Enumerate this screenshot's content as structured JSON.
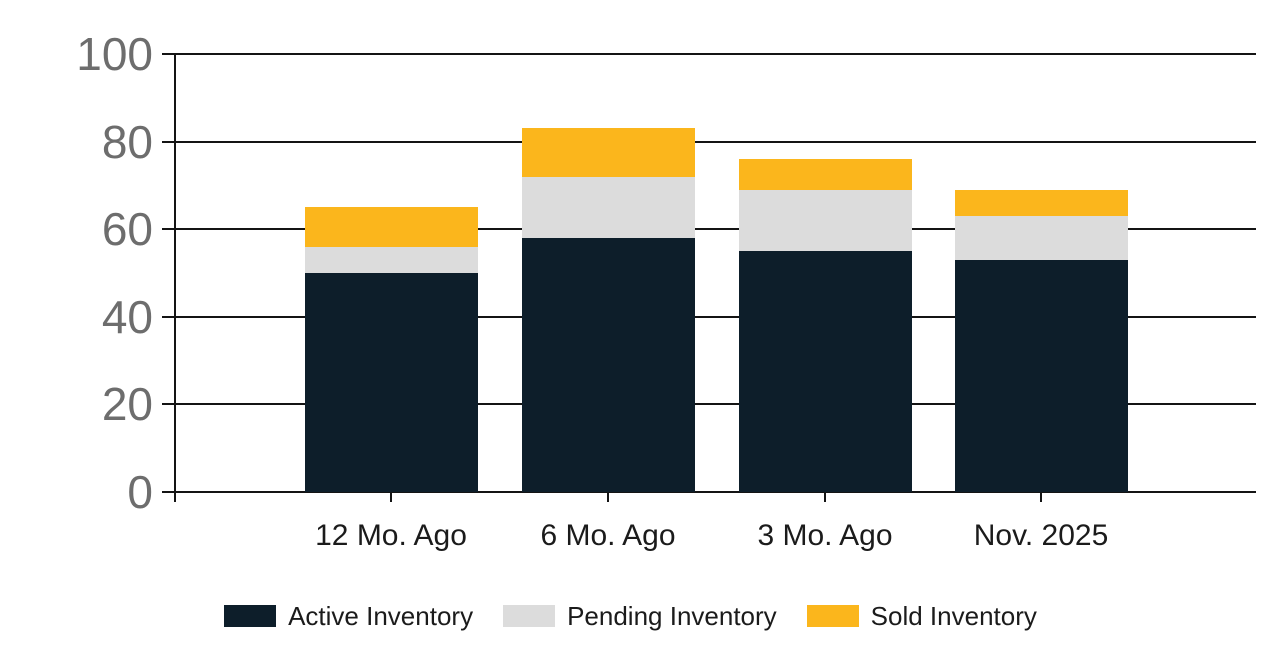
{
  "chart_data": {
    "type": "bar",
    "stacked": true,
    "title": "",
    "xlabel": "",
    "ylabel": "",
    "categories": [
      "12 Mo. Ago",
      "6 Mo. Ago",
      "3 Mo. Ago",
      "Nov. 2025"
    ],
    "series": [
      {
        "name": "Active Inventory",
        "color": "#0d1e2a",
        "values": [
          50,
          58,
          55,
          53
        ]
      },
      {
        "name": "Pending Inventory",
        "color": "#dcdcdc",
        "values": [
          6,
          14,
          14,
          10
        ]
      },
      {
        "name": "Sold Inventory",
        "color": "#fbb61c",
        "values": [
          9,
          11,
          7,
          6
        ]
      }
    ],
    "stack_totals": [
      65,
      83,
      76,
      69
    ],
    "ylim": [
      0,
      100
    ],
    "yticks": [
      0,
      20,
      40,
      60,
      80,
      100
    ],
    "grid": true,
    "legend_position": "bottom"
  },
  "colors": {
    "background": "#ffffff",
    "grid_and_axis": "#141414",
    "y_axis_label": "#6d6d6d",
    "x_axis_label": "#1b1b1b",
    "legend_text": "#1b1b1b"
  }
}
